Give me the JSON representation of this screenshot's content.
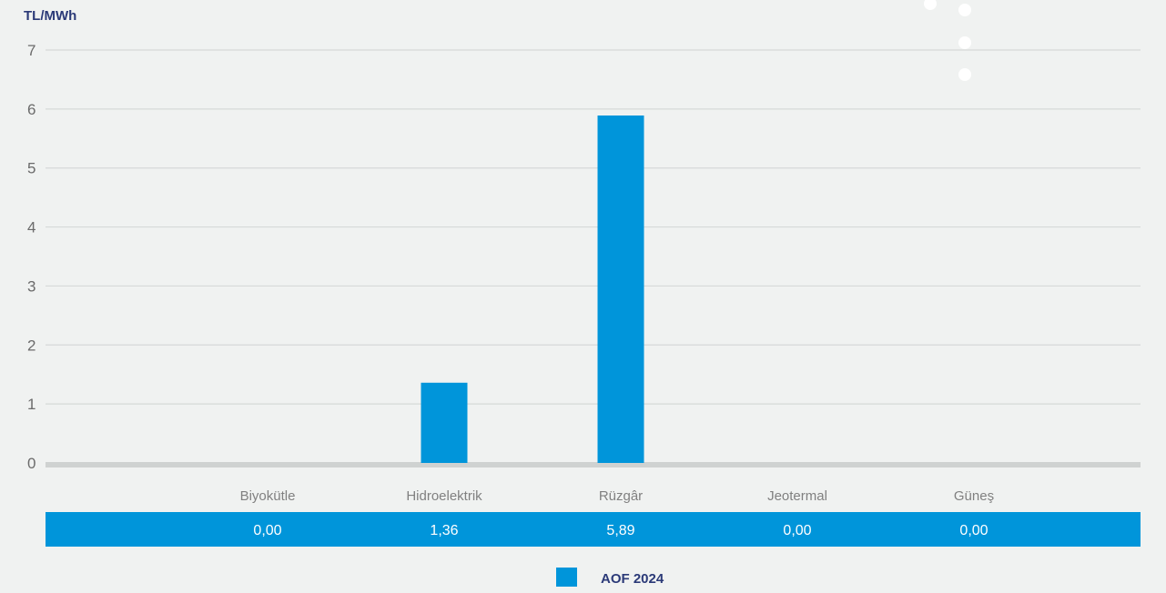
{
  "chart_data": {
    "type": "bar",
    "ylabel": "TL/MWh",
    "ylim": [
      0,
      7
    ],
    "yticks": [
      0,
      1,
      2,
      3,
      4,
      5,
      6,
      7
    ],
    "categories": [
      "Biyokütle",
      "Hidroelektrik",
      "Rüzgâr",
      "Jeotermal",
      "Güneş"
    ],
    "series": [
      {
        "name": "AOF 2024",
        "values": [
          0.0,
          1.36,
          5.89,
          0.0,
          0.0
        ]
      }
    ],
    "value_labels": [
      "0,00",
      "1,36",
      "5,89",
      "0,00",
      "0,00"
    ],
    "grid": true,
    "legend": "bottom-center",
    "colors": {
      "bar": "#0095da",
      "grid": "#d6d9d8",
      "axis": "#cfd2d1",
      "table_bg": "#0095da",
      "text_dark": "#2b3a78"
    }
  }
}
